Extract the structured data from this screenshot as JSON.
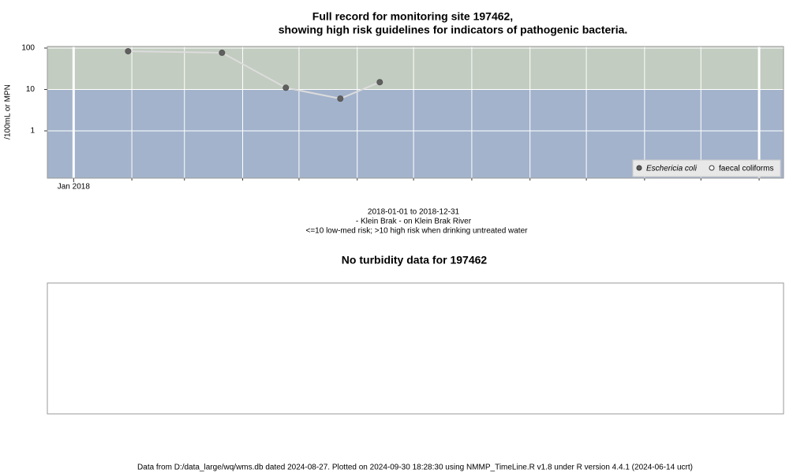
{
  "chart_data": {
    "type": "line",
    "title": "Full record for monitoring site 197462,",
    "subtitle": "showing high risk guidelines for indicators of pathogenic bacteria.",
    "ylabel": "/100mL or MPN",
    "caption": [
      "2018-01-01 to 2018-12-31",
      "- Klein Brak - on Klein Brak River",
      "<=10 low-med risk; >10 high risk when drinking untreated water"
    ],
    "x": [
      "2018-01-30",
      "2018-03-21",
      "2018-04-24",
      "2018-05-23",
      "2018-06-13"
    ],
    "series": [
      {
        "name": "Eschericia coli",
        "color": "#606060",
        "line_color": "#dcdcdc",
        "values": [
          84,
          77,
          11,
          6,
          15
        ]
      },
      {
        "name": "faecal coliforms",
        "color": "#ffffff",
        "values": [
          null,
          null,
          null,
          null,
          null
        ]
      }
    ],
    "xlim": [
      "2017-12-18",
      "2019-01-14"
    ],
    "xticks": [
      {
        "value": "2018-01-01",
        "label": "Jan 2018"
      }
    ],
    "minor_xticks": [
      "2018-02-01",
      "2018-03-01",
      "2018-04-01",
      "2018-05-01",
      "2018-06-01",
      "2018-07-01",
      "2018-08-01",
      "2018-09-01",
      "2018-10-01",
      "2018-11-01",
      "2018-12-01",
      "2019-01-01"
    ],
    "ylim": [
      0.072,
      109
    ],
    "yticks": [
      1,
      10,
      100
    ],
    "log_y": true,
    "grid": true,
    "risk_threshold": 10,
    "band_colors": [
      "#a3b3cc",
      "#c2ccc0"
    ],
    "legend": "bottom-right",
    "second_panel_title": "No turbidity data for 197462",
    "footer": "Data from D:/data_large/wq/wms.db dated 2024-08-27. Plotted on 2024-09-30 18:28:30 using NMMP_TimeLine.R v1.8 under R version 4.4.1 (2024-06-14 ucrt)"
  }
}
